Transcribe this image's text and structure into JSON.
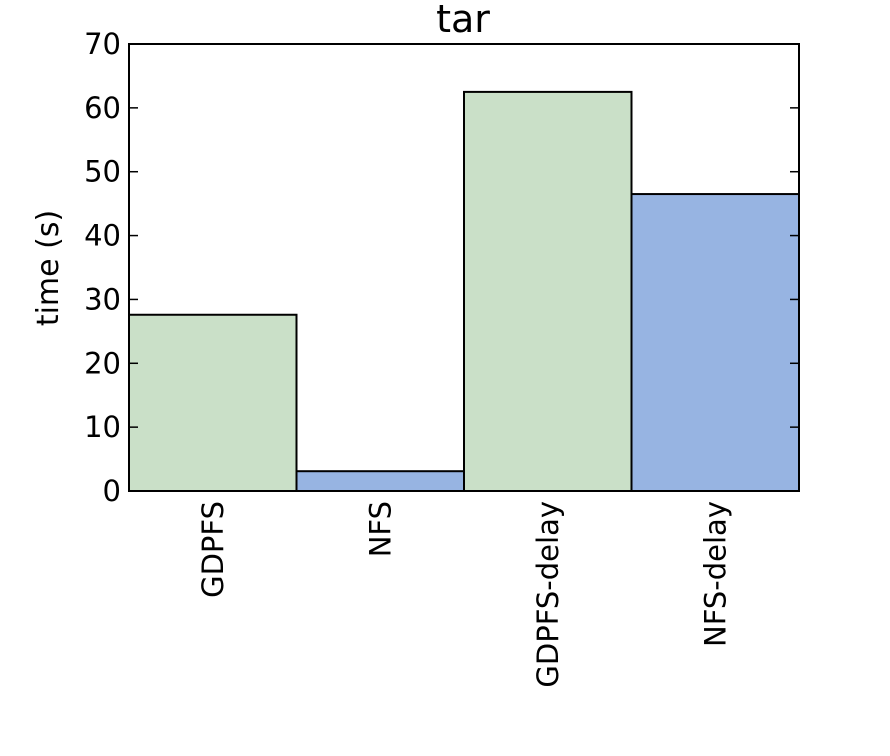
{
  "chart_data": {
    "type": "bar",
    "title": "tar",
    "xlabel": "",
    "ylabel": "time (s)",
    "ylim": [
      0,
      70
    ],
    "yticks": [
      0,
      10,
      20,
      30,
      40,
      50,
      60,
      70
    ],
    "categories": [
      "GDPFS",
      "NFS",
      "GDPFS-delay",
      "NFS-delay"
    ],
    "values": [
      27.6,
      3.1,
      62.5,
      46.5
    ],
    "bar_colors": [
      "#cae0c8",
      "#97b4e2",
      "#cae0c8",
      "#97b4e2"
    ],
    "grid": false,
    "legend": "none"
  }
}
